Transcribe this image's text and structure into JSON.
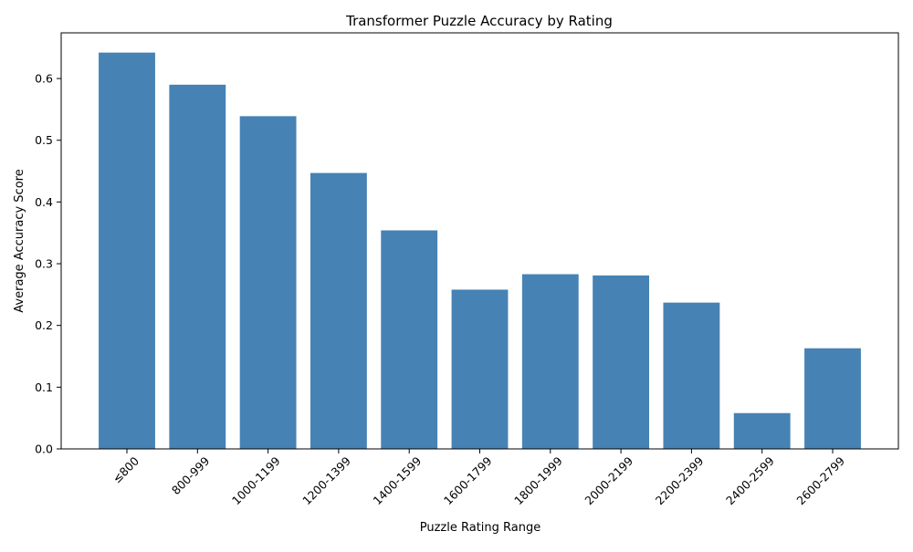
{
  "chart_data": {
    "type": "bar",
    "title": "Transformer Puzzle Accuracy by Rating",
    "xlabel": "Puzzle Rating Range",
    "ylabel": "Average Accuracy Score",
    "categories": [
      "≤800",
      "800-999",
      "1000-1199",
      "1200-1399",
      "1400-1599",
      "1600-1799",
      "1800-1999",
      "2000-2199",
      "2200-2399",
      "2400-2599",
      "2600-2799"
    ],
    "values": [
      0.642,
      0.59,
      0.539,
      0.447,
      0.354,
      0.258,
      0.283,
      0.281,
      0.237,
      0.058,
      0.163
    ],
    "ylim": [
      0,
      0.674
    ],
    "yticks": [
      0.0,
      0.1,
      0.2,
      0.3,
      0.4,
      0.5,
      0.6
    ],
    "ytick_labels": [
      "0.0",
      "0.1",
      "0.2",
      "0.3",
      "0.4",
      "0.5",
      "0.6"
    ],
    "bar_color": "#4682b4",
    "grid": false,
    "legend": "none"
  }
}
